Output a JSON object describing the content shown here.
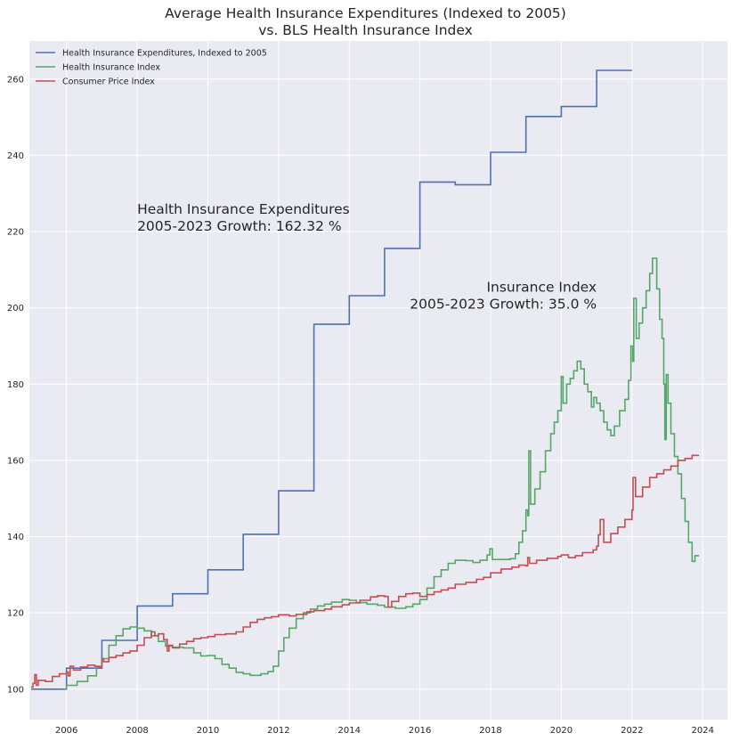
{
  "chart_data": {
    "type": "line",
    "title": "Average Health Insurance Expenditures (Indexed to 2005)",
    "subtitle": "vs. BLS Health Insurance Index",
    "xlabel": "",
    "ylabel": "",
    "xlim": [
      2004.95,
      2024.7
    ],
    "ylim": [
      92,
      270
    ],
    "x_ticks": [
      2006,
      2008,
      2010,
      2012,
      2014,
      2016,
      2018,
      2020,
      2022,
      2024
    ],
    "y_ticks": [
      100,
      120,
      140,
      160,
      180,
      200,
      220,
      240,
      260
    ],
    "grid": true,
    "legend_position": "top-left",
    "step": "post",
    "series": [
      {
        "name": "Health Insurance Expenditures, Indexed to 2005",
        "color": "#4c72b0",
        "points": [
          [
            2005.0,
            100.0
          ],
          [
            2006.0,
            105.5
          ],
          [
            2007.0,
            112.8
          ],
          [
            2008.0,
            121.8
          ],
          [
            2009.0,
            125.0
          ],
          [
            2010.0,
            131.3
          ],
          [
            2011.0,
            140.6
          ],
          [
            2012.0,
            152.0
          ],
          [
            2013.0,
            195.7
          ],
          [
            2014.0,
            203.2
          ],
          [
            2015.0,
            215.6
          ],
          [
            2016.0,
            233.0
          ],
          [
            2017.0,
            232.3
          ],
          [
            2018.0,
            240.8
          ],
          [
            2019.0,
            250.2
          ],
          [
            2020.0,
            252.8
          ],
          [
            2021.0,
            262.3
          ],
          [
            2022.0,
            262.3
          ]
        ]
      },
      {
        "name": "Health Insurance Index",
        "color": "#55a868",
        "points": [
          [
            2005.92,
            100.0
          ],
          [
            2006.0,
            101.0
          ],
          [
            2006.3,
            102.0
          ],
          [
            2006.6,
            103.5
          ],
          [
            2006.85,
            105.8
          ],
          [
            2007.0,
            108.0
          ],
          [
            2007.2,
            111.5
          ],
          [
            2007.4,
            114.0
          ],
          [
            2007.6,
            115.8
          ],
          [
            2007.8,
            116.3
          ],
          [
            2008.0,
            116.0
          ],
          [
            2008.2,
            115.3
          ],
          [
            2008.4,
            114.0
          ],
          [
            2008.6,
            112.5
          ],
          [
            2008.8,
            111.3
          ],
          [
            2009.0,
            111.0
          ],
          [
            2009.3,
            110.8
          ],
          [
            2009.6,
            109.5
          ],
          [
            2009.8,
            108.7
          ],
          [
            2010.0,
            108.8
          ],
          [
            2010.2,
            108.0
          ],
          [
            2010.4,
            106.5
          ],
          [
            2010.6,
            105.5
          ],
          [
            2010.8,
            104.4
          ],
          [
            2011.0,
            104.0
          ],
          [
            2011.2,
            103.6
          ],
          [
            2011.5,
            104.0
          ],
          [
            2011.7,
            104.6
          ],
          [
            2011.85,
            106.0
          ],
          [
            2012.0,
            110.0
          ],
          [
            2012.15,
            113.5
          ],
          [
            2012.3,
            116.0
          ],
          [
            2012.5,
            118.5
          ],
          [
            2012.7,
            120.0
          ],
          [
            2012.9,
            121.0
          ],
          [
            2013.1,
            121.8
          ],
          [
            2013.3,
            122.3
          ],
          [
            2013.5,
            122.8
          ],
          [
            2013.8,
            123.5
          ],
          [
            2014.0,
            123.3
          ],
          [
            2014.2,
            122.7
          ],
          [
            2014.5,
            122.3
          ],
          [
            2014.8,
            122.0
          ],
          [
            2015.0,
            121.5
          ],
          [
            2015.3,
            121.2
          ],
          [
            2015.6,
            121.6
          ],
          [
            2015.8,
            122.3
          ],
          [
            2016.0,
            123.5
          ],
          [
            2016.2,
            126.5
          ],
          [
            2016.4,
            129.5
          ],
          [
            2016.6,
            131.3
          ],
          [
            2016.8,
            133.0
          ],
          [
            2017.0,
            133.8
          ],
          [
            2017.3,
            133.7
          ],
          [
            2017.5,
            133.2
          ],
          [
            2017.7,
            133.8
          ],
          [
            2017.9,
            135.2
          ],
          [
            2017.98,
            136.8
          ],
          [
            2018.05,
            134.0
          ],
          [
            2018.3,
            134.0
          ],
          [
            2018.55,
            134.2
          ],
          [
            2018.7,
            135.5
          ],
          [
            2018.8,
            138.5
          ],
          [
            2018.9,
            141.5
          ],
          [
            2019.0,
            147.0
          ],
          [
            2019.05,
            145.5
          ],
          [
            2019.08,
            162.5
          ],
          [
            2019.13,
            148.5
          ],
          [
            2019.25,
            152.5
          ],
          [
            2019.4,
            157.0
          ],
          [
            2019.55,
            162.5
          ],
          [
            2019.7,
            167.0
          ],
          [
            2019.8,
            170.0
          ],
          [
            2019.9,
            173.0
          ],
          [
            2020.0,
            182.0
          ],
          [
            2020.05,
            175.0
          ],
          [
            2020.15,
            180.0
          ],
          [
            2020.25,
            181.5
          ],
          [
            2020.35,
            183.5
          ],
          [
            2020.45,
            186.0
          ],
          [
            2020.55,
            184.0
          ],
          [
            2020.65,
            180.0
          ],
          [
            2020.75,
            178.0
          ],
          [
            2020.85,
            174.0
          ],
          [
            2020.92,
            176.5
          ],
          [
            2021.0,
            175.0
          ],
          [
            2021.1,
            173.0
          ],
          [
            2021.2,
            170.0
          ],
          [
            2021.3,
            168.0
          ],
          [
            2021.4,
            166.5
          ],
          [
            2021.5,
            169.0
          ],
          [
            2021.65,
            173.0
          ],
          [
            2021.8,
            176.0
          ],
          [
            2021.9,
            181.0
          ],
          [
            2021.97,
            190.0
          ],
          [
            2022.02,
            186.0
          ],
          [
            2022.05,
            202.5
          ],
          [
            2022.12,
            192.0
          ],
          [
            2022.2,
            196.0
          ],
          [
            2022.3,
            200.0
          ],
          [
            2022.4,
            204.5
          ],
          [
            2022.5,
            209.0
          ],
          [
            2022.58,
            213.0
          ],
          [
            2022.7,
            205.0
          ],
          [
            2022.78,
            197.0
          ],
          [
            2022.85,
            192.0
          ],
          [
            2022.9,
            180.0
          ],
          [
            2022.93,
            165.5
          ],
          [
            2022.97,
            182.5
          ],
          [
            2023.02,
            175.0
          ],
          [
            2023.1,
            167.0
          ],
          [
            2023.2,
            161.0
          ],
          [
            2023.3,
            156.5
          ],
          [
            2023.4,
            150.0
          ],
          [
            2023.5,
            144.0
          ],
          [
            2023.6,
            138.5
          ],
          [
            2023.7,
            133.5
          ],
          [
            2023.78,
            135.0
          ],
          [
            2023.9,
            135.0
          ]
        ]
      },
      {
        "name": "Consumer Price Index",
        "color": "#c44e52",
        "points": [
          [
            2005.0,
            100.5
          ],
          [
            2005.05,
            101.5
          ],
          [
            2005.1,
            103.8
          ],
          [
            2005.15,
            101.0
          ],
          [
            2005.2,
            102.3
          ],
          [
            2005.4,
            102.0
          ],
          [
            2005.6,
            103.3
          ],
          [
            2005.8,
            104.0
          ],
          [
            2006.0,
            104.5
          ],
          [
            2006.05,
            103.5
          ],
          [
            2006.1,
            106.0
          ],
          [
            2006.2,
            105.0
          ],
          [
            2006.4,
            105.8
          ],
          [
            2006.6,
            106.3
          ],
          [
            2006.8,
            106.0
          ],
          [
            2006.95,
            105.6
          ],
          [
            2007.0,
            108.0
          ],
          [
            2007.05,
            107.2
          ],
          [
            2007.2,
            108.3
          ],
          [
            2007.4,
            108.8
          ],
          [
            2007.6,
            109.5
          ],
          [
            2007.8,
            110.0
          ],
          [
            2008.0,
            111.5
          ],
          [
            2008.2,
            113.5
          ],
          [
            2008.4,
            115.0
          ],
          [
            2008.5,
            114.0
          ],
          [
            2008.6,
            114.5
          ],
          [
            2008.75,
            113.0
          ],
          [
            2008.85,
            110.0
          ],
          [
            2008.9,
            111.5
          ],
          [
            2009.0,
            110.8
          ],
          [
            2009.2,
            111.8
          ],
          [
            2009.4,
            112.5
          ],
          [
            2009.6,
            113.2
          ],
          [
            2009.8,
            113.5
          ],
          [
            2010.0,
            113.8
          ],
          [
            2010.2,
            114.3
          ],
          [
            2010.5,
            114.5
          ],
          [
            2010.8,
            115.0
          ],
          [
            2011.0,
            116.3
          ],
          [
            2011.2,
            117.5
          ],
          [
            2011.4,
            118.3
          ],
          [
            2011.6,
            118.7
          ],
          [
            2011.8,
            119.0
          ],
          [
            2012.0,
            119.5
          ],
          [
            2012.3,
            119.2
          ],
          [
            2012.5,
            119.6
          ],
          [
            2012.8,
            120.3
          ],
          [
            2013.0,
            120.6
          ],
          [
            2013.3,
            121.0
          ],
          [
            2013.5,
            121.6
          ],
          [
            2013.8,
            122.1
          ],
          [
            2014.0,
            122.6
          ],
          [
            2014.3,
            123.3
          ],
          [
            2014.6,
            124.2
          ],
          [
            2014.8,
            124.5
          ],
          [
            2015.0,
            124.3
          ],
          [
            2015.1,
            121.5
          ],
          [
            2015.2,
            123.0
          ],
          [
            2015.4,
            124.3
          ],
          [
            2015.6,
            125.0
          ],
          [
            2015.8,
            125.2
          ],
          [
            2016.0,
            124.3
          ],
          [
            2016.2,
            124.8
          ],
          [
            2016.4,
            125.5
          ],
          [
            2016.6,
            126.0
          ],
          [
            2016.8,
            126.5
          ],
          [
            2017.0,
            127.5
          ],
          [
            2017.3,
            128.0
          ],
          [
            2017.6,
            128.8
          ],
          [
            2017.8,
            129.3
          ],
          [
            2018.0,
            130.5
          ],
          [
            2018.3,
            131.5
          ],
          [
            2018.6,
            132.0
          ],
          [
            2018.8,
            132.5
          ],
          [
            2019.0,
            132.3
          ],
          [
            2019.05,
            134.5
          ],
          [
            2019.1,
            133.0
          ],
          [
            2019.3,
            133.8
          ],
          [
            2019.6,
            134.3
          ],
          [
            2019.9,
            134.8
          ],
          [
            2020.0,
            135.2
          ],
          [
            2020.2,
            134.5
          ],
          [
            2020.4,
            135.0
          ],
          [
            2020.6,
            135.8
          ],
          [
            2020.9,
            136.5
          ],
          [
            2021.0,
            137.5
          ],
          [
            2021.05,
            140.5
          ],
          [
            2021.1,
            144.5
          ],
          [
            2021.2,
            138.5
          ],
          [
            2021.4,
            140.8
          ],
          [
            2021.6,
            142.5
          ],
          [
            2021.8,
            144.5
          ],
          [
            2022.0,
            147.0
          ],
          [
            2022.03,
            155.5
          ],
          [
            2022.1,
            150.5
          ],
          [
            2022.3,
            153.0
          ],
          [
            2022.5,
            155.5
          ],
          [
            2022.7,
            156.5
          ],
          [
            2022.9,
            157.5
          ],
          [
            2023.1,
            158.5
          ],
          [
            2023.3,
            160.0
          ],
          [
            2023.5,
            160.5
          ],
          [
            2023.7,
            161.3
          ],
          [
            2023.9,
            161.3
          ]
        ]
      }
    ],
    "annotations": [
      {
        "lines": [
          "Health Insurance Expenditures",
          "2005-2023 Growth: 162.32 %"
        ],
        "x": 2008.0,
        "y": 220.5,
        "align": "left"
      },
      {
        "lines": [
          "Insurance Index",
          "2005-2023 Growth: 35.0 %"
        ],
        "x": 2021.0,
        "y": 200.0,
        "align": "right"
      }
    ]
  }
}
